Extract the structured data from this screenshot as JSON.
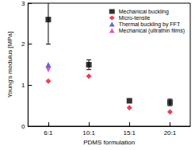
{
  "chart_data": {
    "type": "scatter",
    "x_label": "PDMS formulation",
    "y_label": "Young's modulus [MPa]",
    "categories": [
      "6:1",
      "10:1",
      "15:1",
      "20:1"
    ],
    "ylim": [
      0,
      3
    ],
    "yticks": [
      0,
      1,
      2,
      3
    ],
    "legend": "upper right",
    "series": [
      {
        "name": "Mechanical buckling",
        "color": "#000000",
        "marker": "square",
        "values": [
          2.6,
          1.5,
          0.62,
          0.58
        ],
        "errors": [
          0.6,
          0.12,
          null,
          0.08
        ]
      },
      {
        "name": "Micro-tensile",
        "color": "#e8102a",
        "marker": "diamond",
        "values": [
          1.1,
          1.22,
          0.45,
          0.35
        ]
      },
      {
        "name": "Thermal buckling by FFT",
        "color": "#3344cc",
        "marker": "triangle",
        "values": [
          1.5,
          null,
          null,
          null
        ]
      },
      {
        "name": "Mechanical (ultrathin films)",
        "color": "#cc33cc",
        "marker": "triangle-down",
        "values": [
          1.38,
          null,
          null,
          null
        ]
      }
    ]
  }
}
